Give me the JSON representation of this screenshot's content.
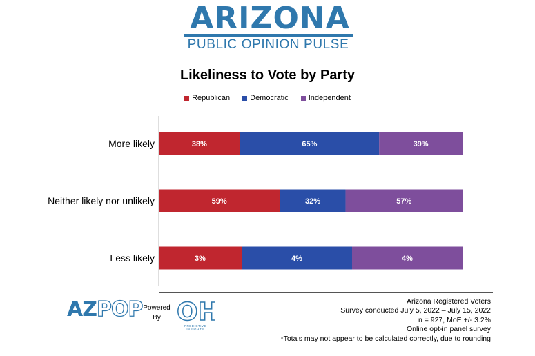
{
  "header": {
    "brand_name": "ARIZONA",
    "brand_subtitle": "PUBLIC OPINION PULSE"
  },
  "chart_data": {
    "type": "bar",
    "orientation": "horizontal",
    "stacked": true,
    "title": "Likeliness to Vote by Party",
    "categories": [
      "More likely",
      "Neither likely nor unlikely",
      "Less likely"
    ],
    "series": [
      {
        "name": "Republican",
        "values": [
          38,
          59,
          3
        ],
        "labels": [
          "38%",
          "59%",
          "3%"
        ],
        "color": "#c0262f"
      },
      {
        "name": "Democratic",
        "values": [
          65,
          32,
          4
        ],
        "labels": [
          "65%",
          "32%",
          "4%"
        ],
        "color": "#2a4ea8"
      },
      {
        "name": "Independent",
        "values": [
          39,
          57,
          4
        ],
        "labels": [
          "39%",
          "57%",
          "4%"
        ],
        "color": "#7e4e9c"
      }
    ],
    "xlabel": "",
    "ylabel": "",
    "grid": false,
    "legend_position": "top"
  },
  "footer": {
    "azpop_logo_az": "AZ",
    "azpop_logo_pop": "POP",
    "powered_by": "Powered By",
    "oh_logo": "OH",
    "oh_sub": "PREDICTIVE INSIGHTS",
    "notes": [
      "Arizona Registered Voters",
      "Survey conducted July 5, 2022 – July 15, 2022",
      "n = 927, MoE +/- 3.2%",
      "Online opt-in panel survey",
      "*Totals may not appear to be calculated correctly, due to rounding"
    ]
  }
}
